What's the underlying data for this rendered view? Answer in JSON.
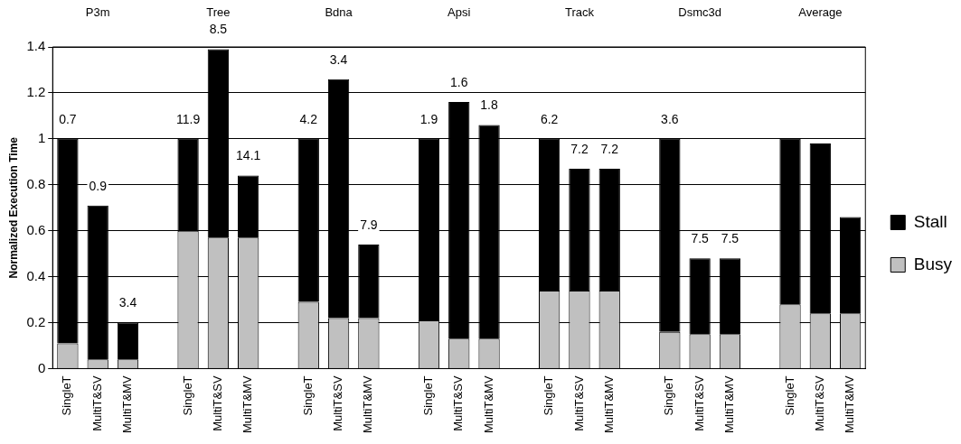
{
  "chart_data": {
    "type": "bar",
    "stacked": true,
    "ylabel": "Normalized Execution Time",
    "categories": [
      "SingleT",
      "MultiT&SV",
      "MultiT&MV",
      null,
      "SingleT",
      "MultiT&SV",
      "MultiT&MV",
      null,
      "SingleT",
      "MultiT&SV",
      "MultiT&MV",
      null,
      "SingleT",
      "MultiT&SV",
      "MultiT&MV",
      null,
      "SingleT",
      "MultiT&SV",
      "MultiT&MV",
      null,
      "SingleT",
      "MultiT&SV",
      "MultiT&MV",
      null,
      "SingleT",
      "MultiT&SV",
      "MultiT&MV"
    ],
    "series": [
      {
        "name": "Busy",
        "color": "#c0c0c0",
        "values": [
          0.11,
          0.04,
          0.04,
          null,
          0.6,
          0.57,
          0.57,
          null,
          0.29,
          0.22,
          0.22,
          null,
          0.21,
          0.13,
          0.13,
          null,
          0.34,
          0.34,
          0.34,
          null,
          0.16,
          0.15,
          0.15,
          null,
          0.28,
          0.24,
          0.24
        ]
      },
      {
        "name": "Stall",
        "color": "#000000",
        "values": [
          0.89,
          0.67,
          0.16,
          null,
          0.4,
          0.82,
          0.27,
          null,
          0.71,
          1.04,
          0.32,
          null,
          0.79,
          1.03,
          0.93,
          null,
          0.66,
          0.53,
          0.53,
          null,
          0.84,
          0.33,
          0.33,
          null,
          0.72,
          0.74,
          0.42
        ]
      }
    ],
    "ylim": [
      0,
      1.4
    ],
    "yticks": [
      0,
      0.2,
      0.4,
      0.6,
      0.8,
      1,
      1.2,
      1.4
    ],
    "grid": "y",
    "legend": "right",
    "annotations": [
      "P3m",
      "Tree",
      "Bdna",
      "Apsi",
      "Track",
      "Dsmc3d",
      "Average",
      "0.7",
      "0.9",
      "3.4",
      "11.9",
      "8.5",
      "14.1",
      "4.2",
      "3.4",
      "7.9",
      "1.9",
      "1.6",
      "1.8",
      "6.2",
      "7.2",
      "7.2",
      "3.6",
      "7.5",
      "7.5"
    ]
  }
}
